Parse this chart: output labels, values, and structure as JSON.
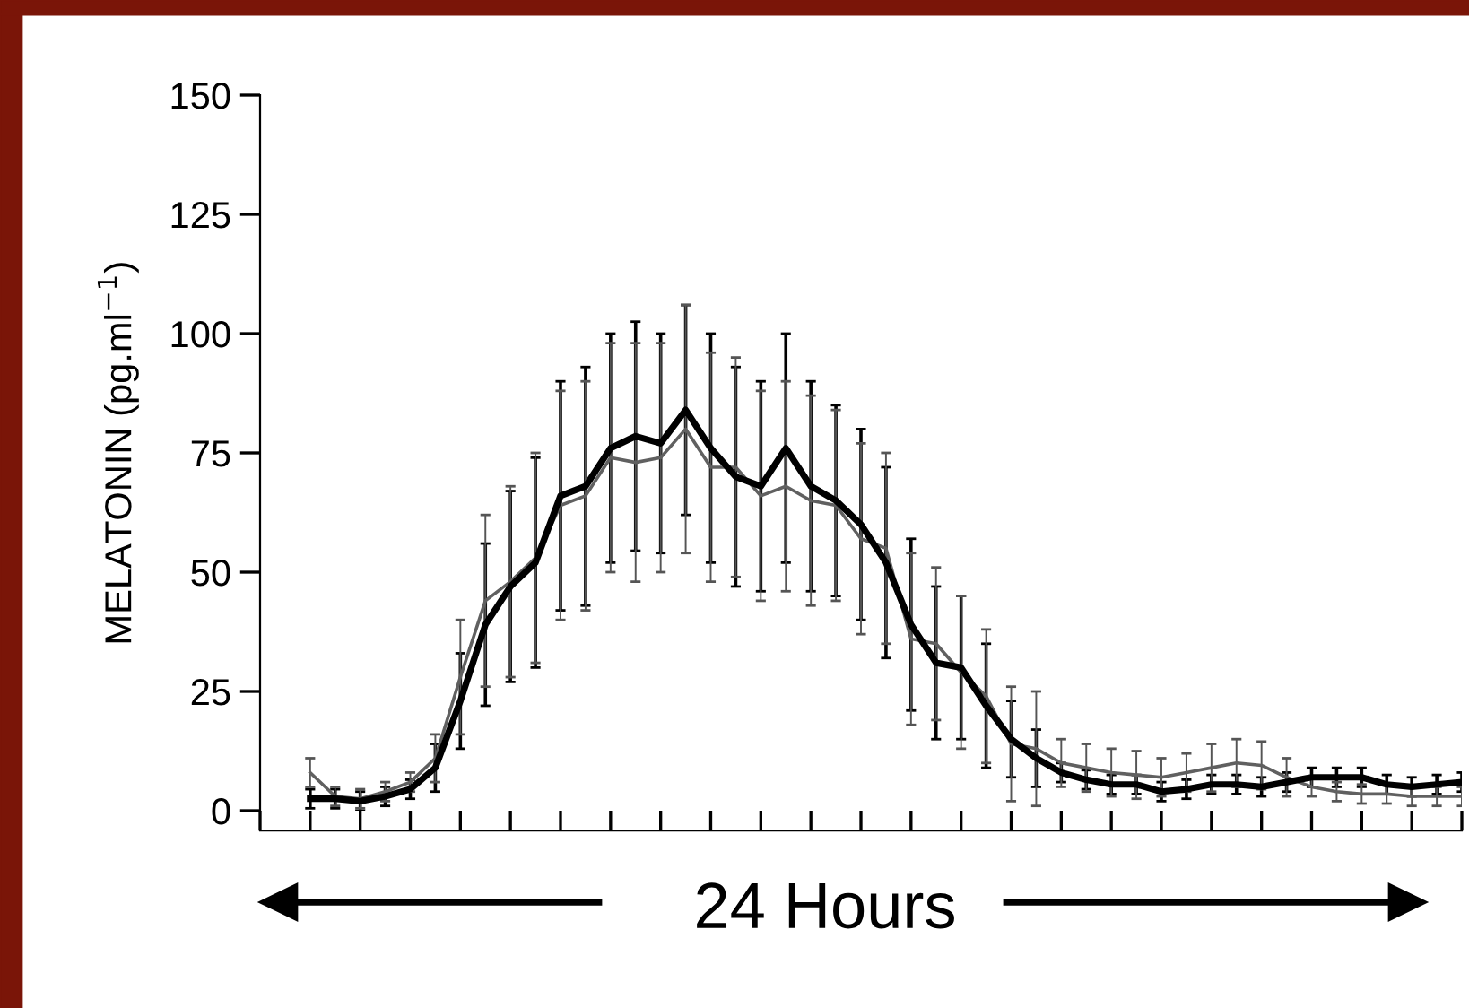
{
  "chart_data": {
    "type": "line",
    "ylabel": "MELATONIN (pg.ml$^{−1}$)",
    "annotations": [
      "24 Hours"
    ],
    "categories": [
      null,
      null,
      null,
      null,
      null,
      null,
      null,
      null,
      null,
      null,
      null,
      null,
      null,
      null,
      null,
      null,
      null,
      null,
      null,
      null,
      null,
      null,
      null,
      null,
      null,
      null,
      null,
      null,
      null,
      null,
      null,
      null,
      null,
      null,
      null,
      null,
      null,
      null,
      null,
      null,
      null,
      null,
      null,
      null,
      null,
      null,
      null
    ],
    "series": [
      {
        "color": "#000000",
        "values": [
          2.5,
          2.5,
          2,
          3,
          4.5,
          9,
          23,
          39,
          47,
          52,
          66,
          68,
          76,
          78.5,
          77,
          84,
          76,
          70,
          68,
          76,
          68,
          65,
          60,
          52,
          39,
          31,
          30,
          22,
          15,
          11,
          8,
          6.5,
          5.5,
          5.5,
          4,
          4.5,
          5.5,
          5.5,
          5,
          6,
          7,
          7,
          7,
          5.5,
          5,
          5.5,
          6
        ],
        "errors": [
          2,
          2,
          2,
          2,
          2,
          5,
          10,
          17,
          20,
          22,
          24,
          25,
          24,
          24,
          23,
          22,
          24,
          23,
          22,
          24,
          22,
          20,
          20,
          20,
          18,
          16,
          15,
          13,
          8,
          6,
          2,
          2,
          2,
          2,
          2,
          2,
          2,
          2,
          2,
          2,
          2,
          2,
          2,
          2,
          2,
          2,
          2
        ]
      },
      {
        "color": "#606060",
        "values": [
          8,
          3,
          2.5,
          4,
          6,
          11,
          28,
          44,
          48,
          53,
          64,
          66,
          74,
          73,
          74,
          80,
          72,
          72,
          66,
          68,
          65,
          64,
          57,
          55,
          36,
          35,
          29,
          24,
          14,
          13,
          10,
          9,
          8,
          7.5,
          7,
          8,
          9,
          10,
          9.5,
          7,
          5,
          4,
          3.5,
          3.5,
          3,
          3,
          3
        ],
        "errors": [
          3,
          2,
          2,
          2,
          2,
          5,
          12,
          18,
          20,
          22,
          24,
          24,
          24,
          25,
          24,
          26,
          24,
          23,
          22,
          22,
          22,
          20,
          20,
          20,
          18,
          16,
          16,
          14,
          12,
          12,
          5,
          5,
          5,
          5,
          4,
          4,
          5,
          5,
          5,
          4,
          2,
          2,
          2,
          2,
          2,
          2,
          2
        ]
      }
    ],
    "ylim": [
      0,
      150
    ],
    "yticks": [
      0,
      25,
      50,
      75,
      100,
      125,
      150
    ],
    "tick_labels": "y",
    "grid": false,
    "legend": false,
    "marker": "none",
    "line_style": "solid"
  }
}
